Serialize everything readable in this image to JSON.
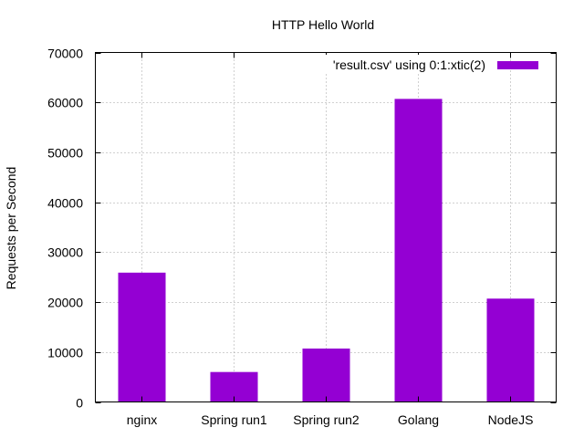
{
  "chart_data": {
    "type": "bar",
    "title": "HTTP Hello World",
    "xlabel": "",
    "ylabel": "Requests per Second",
    "categories": [
      "nginx",
      "Spring run1",
      "Spring run2",
      "Golang",
      "NodeJS"
    ],
    "series": [
      {
        "name": "'result.csv' using 0:1:xtic(2)",
        "values": [
          25900,
          6000,
          10700,
          60700,
          20700
        ]
      }
    ],
    "ylim": [
      0,
      70000
    ],
    "yticks": [
      "0",
      "10000",
      "20000",
      "30000",
      "40000",
      "50000",
      "60000",
      "70000"
    ],
    "grid": true,
    "legend_position": "top-right",
    "colors": {
      "bar": "#9400d3",
      "grid": "#a0a0a0",
      "axis": "#000000"
    }
  }
}
